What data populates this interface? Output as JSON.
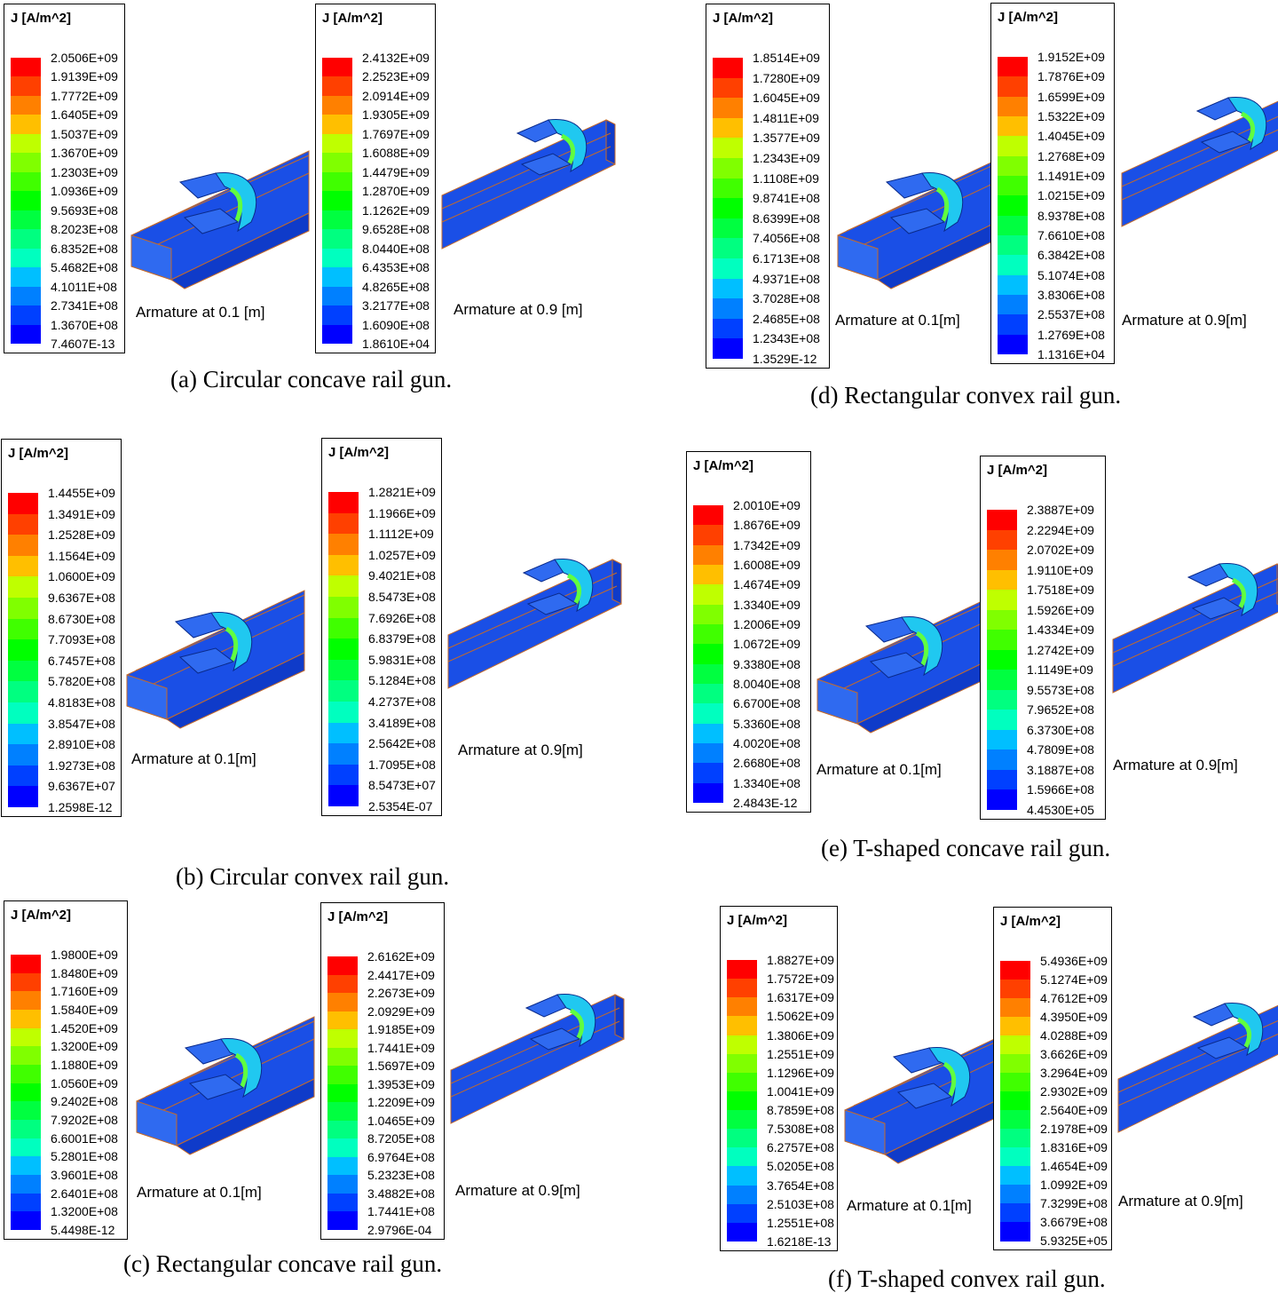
{
  "colors": {
    "scale": [
      "#ff0000",
      "#ff4000",
      "#ff8000",
      "#ffbf00",
      "#ffff00",
      "#bfff00",
      "#80ff00",
      "#40ff00",
      "#00ff00",
      "#00ff40",
      "#00ff80",
      "#00ffbf",
      "#00ffff",
      "#00bfff",
      "#0080ff",
      "#0040ff",
      "#0000ff"
    ],
    "body": "#1a4fe6",
    "body_light": "#2f6af0",
    "body_dark": "#0f3bc9",
    "edge": "#c46a2a"
  },
  "panels": [
    {
      "caption": "(a) Circular concave rail gun.",
      "plots": [
        {
          "title": "J [A/m^2]",
          "values": [
            "2.0506E+09",
            "1.9139E+09",
            "1.7772E+09",
            "1.6405E+09",
            "1.5037E+09",
            "1.3670E+09",
            "1.2303E+09",
            "1.0936E+09",
            "9.5693E+08",
            "8.2023E+08",
            "6.8352E+08",
            "5.4682E+08",
            "4.1011E+08",
            "2.7341E+08",
            "1.3670E+08",
            "7.4607E-13"
          ],
          "armature_label": "Armature at 0.1 [m]"
        },
        {
          "title": "J [A/m^2]",
          "values": [
            "2.4132E+09",
            "2.2523E+09",
            "2.0914E+09",
            "1.9305E+09",
            "1.7697E+09",
            "1.6088E+09",
            "1.4479E+09",
            "1.2870E+09",
            "1.1262E+09",
            "9.6528E+08",
            "8.0440E+08",
            "6.4353E+08",
            "4.8265E+08",
            "3.2177E+08",
            "1.6090E+08",
            "1.8610E+04"
          ],
          "armature_label": "Armature at 0.9 [m]"
        }
      ]
    },
    {
      "caption": "(b) Circular convex rail gun.",
      "plots": [
        {
          "title": "J [A/m^2]",
          "values": [
            "1.4455E+09",
            "1.3491E+09",
            "1.2528E+09",
            "1.1564E+09",
            "1.0600E+09",
            "9.6367E+08",
            "8.6730E+08",
            "7.7093E+08",
            "6.7457E+08",
            "5.7820E+08",
            "4.8183E+08",
            "3.8547E+08",
            "2.8910E+08",
            "1.9273E+08",
            "9.6367E+07",
            "1.2598E-12"
          ],
          "armature_label": "Armature at 0.1[m]"
        },
        {
          "title": "J [A/m^2]",
          "values": [
            "1.2821E+09",
            "1.1966E+09",
            "1.1112E+09",
            "1.0257E+09",
            "9.4021E+08",
            "8.5473E+08",
            "7.6926E+08",
            "6.8379E+08",
            "5.9831E+08",
            "5.1284E+08",
            "4.2737E+08",
            "3.4189E+08",
            "2.5642E+08",
            "1.7095E+08",
            "8.5473E+07",
            "2.5354E-07"
          ],
          "armature_label": "Armature at 0.9[m]"
        }
      ]
    },
    {
      "caption": "(c) Rectangular concave rail gun.",
      "plots": [
        {
          "title": "J [A/m^2]",
          "values": [
            "1.9800E+09",
            "1.8480E+09",
            "1.7160E+09",
            "1.5840E+09",
            "1.4520E+09",
            "1.3200E+09",
            "1.1880E+09",
            "1.0560E+09",
            "9.2402E+08",
            "7.9202E+08",
            "6.6001E+08",
            "5.2801E+08",
            "3.9601E+08",
            "2.6401E+08",
            "1.3200E+08",
            "5.4498E-12"
          ],
          "armature_label": "Armature at 0.1[m]"
        },
        {
          "title": "J [A/m^2]",
          "values": [
            "2.6162E+09",
            "2.4417E+09",
            "2.2673E+09",
            "2.0929E+09",
            "1.9185E+09",
            "1.7441E+09",
            "1.5697E+09",
            "1.3953E+09",
            "1.2209E+09",
            "1.0465E+09",
            "8.7205E+08",
            "6.9764E+08",
            "5.2323E+08",
            "3.4882E+08",
            "1.7441E+08",
            "2.9796E-04"
          ],
          "armature_label": "Armature at 0.9[m]"
        }
      ]
    },
    {
      "caption": "(d) Rectangular convex rail gun.",
      "plots": [
        {
          "title": "J [A/m^2]",
          "values": [
            "1.8514E+09",
            "1.7280E+09",
            "1.6045E+09",
            "1.4811E+09",
            "1.3577E+09",
            "1.2343E+09",
            "1.1108E+09",
            "9.8741E+08",
            "8.6399E+08",
            "7.4056E+08",
            "6.1713E+08",
            "4.9371E+08",
            "3.7028E+08",
            "2.4685E+08",
            "1.2343E+08",
            "1.3529E-12"
          ],
          "armature_label": "Armature at 0.1[m]"
        },
        {
          "title": "J [A/m^2]",
          "values": [
            "1.9152E+09",
            "1.7876E+09",
            "1.6599E+09",
            "1.5322E+09",
            "1.4045E+09",
            "1.2768E+09",
            "1.1491E+09",
            "1.0215E+09",
            "8.9378E+08",
            "7.6610E+08",
            "6.3842E+08",
            "5.1074E+08",
            "3.8306E+08",
            "2.5537E+08",
            "1.2769E+08",
            "1.1316E+04"
          ],
          "armature_label": "Armature at 0.9[m]"
        }
      ]
    },
    {
      "caption": "(e) T-shaped concave rail gun.",
      "plots": [
        {
          "title": "J [A/m^2]",
          "values": [
            "2.0010E+09",
            "1.8676E+09",
            "1.7342E+09",
            "1.6008E+09",
            "1.4674E+09",
            "1.3340E+09",
            "1.2006E+09",
            "1.0672E+09",
            "9.3380E+08",
            "8.0040E+08",
            "6.6700E+08",
            "5.3360E+08",
            "4.0020E+08",
            "2.6680E+08",
            "1.3340E+08",
            "2.4843E-12"
          ],
          "armature_label": "Armature at 0.1[m]"
        },
        {
          "title": "J [A/m^2]",
          "values": [
            "2.3887E+09",
            "2.2294E+09",
            "2.0702E+09",
            "1.9110E+09",
            "1.7518E+09",
            "1.5926E+09",
            "1.4334E+09",
            "1.2742E+09",
            "1.1149E+09",
            "9.5573E+08",
            "7.9652E+08",
            "6.3730E+08",
            "4.7809E+08",
            "3.1887E+08",
            "1.5966E+08",
            "4.4530E+05"
          ],
          "armature_label": "Armature at 0.9[m]"
        }
      ]
    },
    {
      "caption": "(f) T-shaped convex rail gun.",
      "plots": [
        {
          "title": "J [A/m^2]",
          "values": [
            "1.8827E+09",
            "1.7572E+09",
            "1.6317E+09",
            "1.5062E+09",
            "1.3806E+09",
            "1.2551E+09",
            "1.1296E+09",
            "1.0041E+09",
            "8.7859E+08",
            "7.5308E+08",
            "6.2757E+08",
            "5.0205E+08",
            "3.7654E+08",
            "2.5103E+08",
            "1.2551E+08",
            "1.6218E-13"
          ],
          "armature_label": "Armature at 0.1[m]"
        },
        {
          "title": "J [A/m^2]",
          "values": [
            "5.4936E+09",
            "5.1274E+09",
            "4.7612E+09",
            "4.3950E+09",
            "4.0288E+09",
            "3.6626E+09",
            "3.2964E+09",
            "2.9302E+09",
            "2.5640E+09",
            "2.1978E+09",
            "1.8316E+09",
            "1.4654E+09",
            "1.0992E+09",
            "7.3299E+08",
            "3.6679E+08",
            "5.9325E+05"
          ],
          "armature_label": "Armature at 0.9[m]"
        }
      ]
    }
  ]
}
